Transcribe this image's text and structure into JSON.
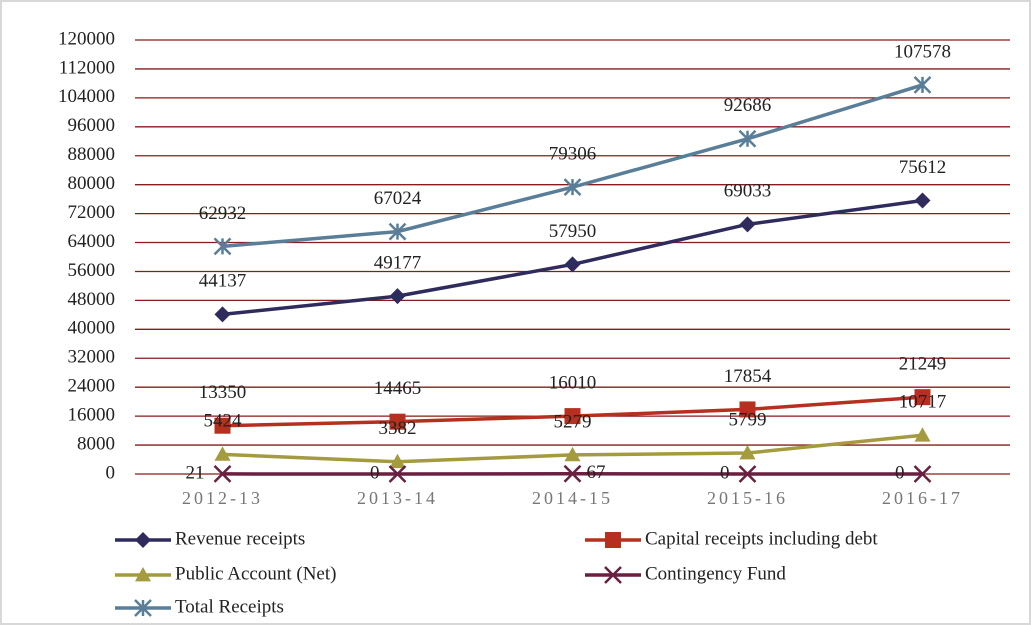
{
  "chart_data": {
    "type": "line",
    "categories": [
      "2012-13",
      "2013-14",
      "2014-15",
      "2015-16",
      "2016-17"
    ],
    "series": [
      {
        "name": "Revenue receipts",
        "color": "#2f2b5c",
        "marker": "diamond",
        "values": [
          44137,
          49177,
          57950,
          69033,
          75612
        ]
      },
      {
        "name": "Capital receipts including debt",
        "color": "#b5301f",
        "marker": "square",
        "values": [
          13350,
          14465,
          16010,
          17854,
          21249
        ]
      },
      {
        "name": "Public Account (Net)",
        "color": "#a39b3e",
        "marker": "triangle",
        "values": [
          5424,
          3382,
          5279,
          5799,
          10717
        ]
      },
      {
        "name": "Contingency Fund",
        "color": "#6a1e40",
        "marker": "x",
        "values": [
          21,
          0,
          67,
          0,
          0
        ]
      },
      {
        "name": "Total Receipts",
        "color": "#5a7e97",
        "marker": "star",
        "values": [
          62932,
          67024,
          79306,
          92686,
          107578
        ]
      }
    ],
    "ylim": [
      0,
      120000
    ],
    "yticks": [
      0,
      8000,
      16000,
      24000,
      32000,
      40000,
      48000,
      56000,
      64000,
      72000,
      80000,
      88000,
      96000,
      104000,
      112000,
      120000
    ],
    "grid": true,
    "grid_color": "#8b1a1a",
    "legend": "bottom"
  }
}
